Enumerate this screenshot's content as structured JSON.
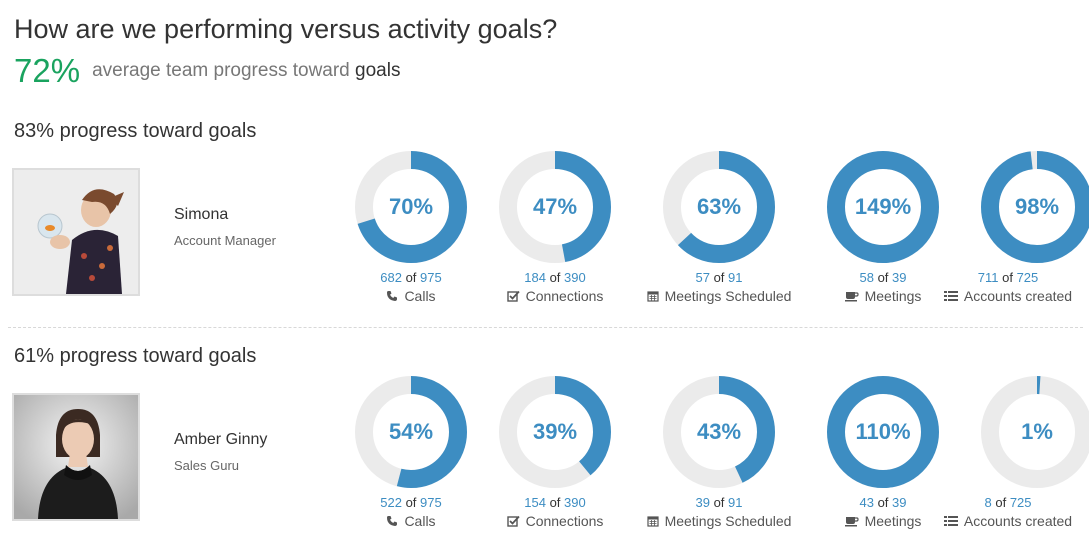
{
  "header": {
    "title": "How are we performing versus activity goals?",
    "average_value": "72%",
    "average_text": "average team progress toward",
    "average_text_strong": "goals"
  },
  "colors": {
    "accent": "#3d8dc2",
    "track": "#ebebeb",
    "positive": "#1aa35f"
  },
  "people": [
    {
      "heading": "83% progress toward goals",
      "name": "Simona",
      "role": "Account Manager",
      "metrics": [
        {
          "percent": "70%",
          "progress": 0.7,
          "current": "682",
          "of": "of",
          "goal": "975",
          "label": "Calls",
          "icon": "phone-icon"
        },
        {
          "percent": "47%",
          "progress": 0.47,
          "current": "184",
          "of": "of",
          "goal": "390",
          "label": "Connections",
          "icon": "check-square-icon"
        },
        {
          "percent": "63%",
          "progress": 0.63,
          "current": "57",
          "of": "of",
          "goal": "91",
          "label": "Meetings Scheduled",
          "icon": "calendar-icon"
        },
        {
          "percent": "149%",
          "progress": 1.0,
          "current": "58",
          "of": "of",
          "goal": "39",
          "label": "Meetings",
          "icon": "coffee-icon"
        },
        {
          "percent": "98%",
          "progress": 0.98,
          "current": "711",
          "of": "of",
          "goal": "725",
          "label": "Accounts created",
          "icon": "list-icon"
        }
      ]
    },
    {
      "heading": "61% progress toward goals",
      "name": "Amber Ginny",
      "role": "Sales Guru",
      "metrics": [
        {
          "percent": "54%",
          "progress": 0.54,
          "current": "522",
          "of": "of",
          "goal": "975",
          "label": "Calls",
          "icon": "phone-icon"
        },
        {
          "percent": "39%",
          "progress": 0.39,
          "current": "154",
          "of": "of",
          "goal": "390",
          "label": "Connections",
          "icon": "check-square-icon"
        },
        {
          "percent": "43%",
          "progress": 0.43,
          "current": "39",
          "of": "of",
          "goal": "91",
          "label": "Meetings Scheduled",
          "icon": "calendar-icon"
        },
        {
          "percent": "110%",
          "progress": 1.0,
          "current": "43",
          "of": "of",
          "goal": "39",
          "label": "Meetings",
          "icon": "coffee-icon"
        },
        {
          "percent": "1%",
          "progress": 0.01,
          "current": "8",
          "of": "of",
          "goal": "725",
          "label": "Accounts created",
          "icon": "list-icon"
        }
      ]
    }
  ]
}
